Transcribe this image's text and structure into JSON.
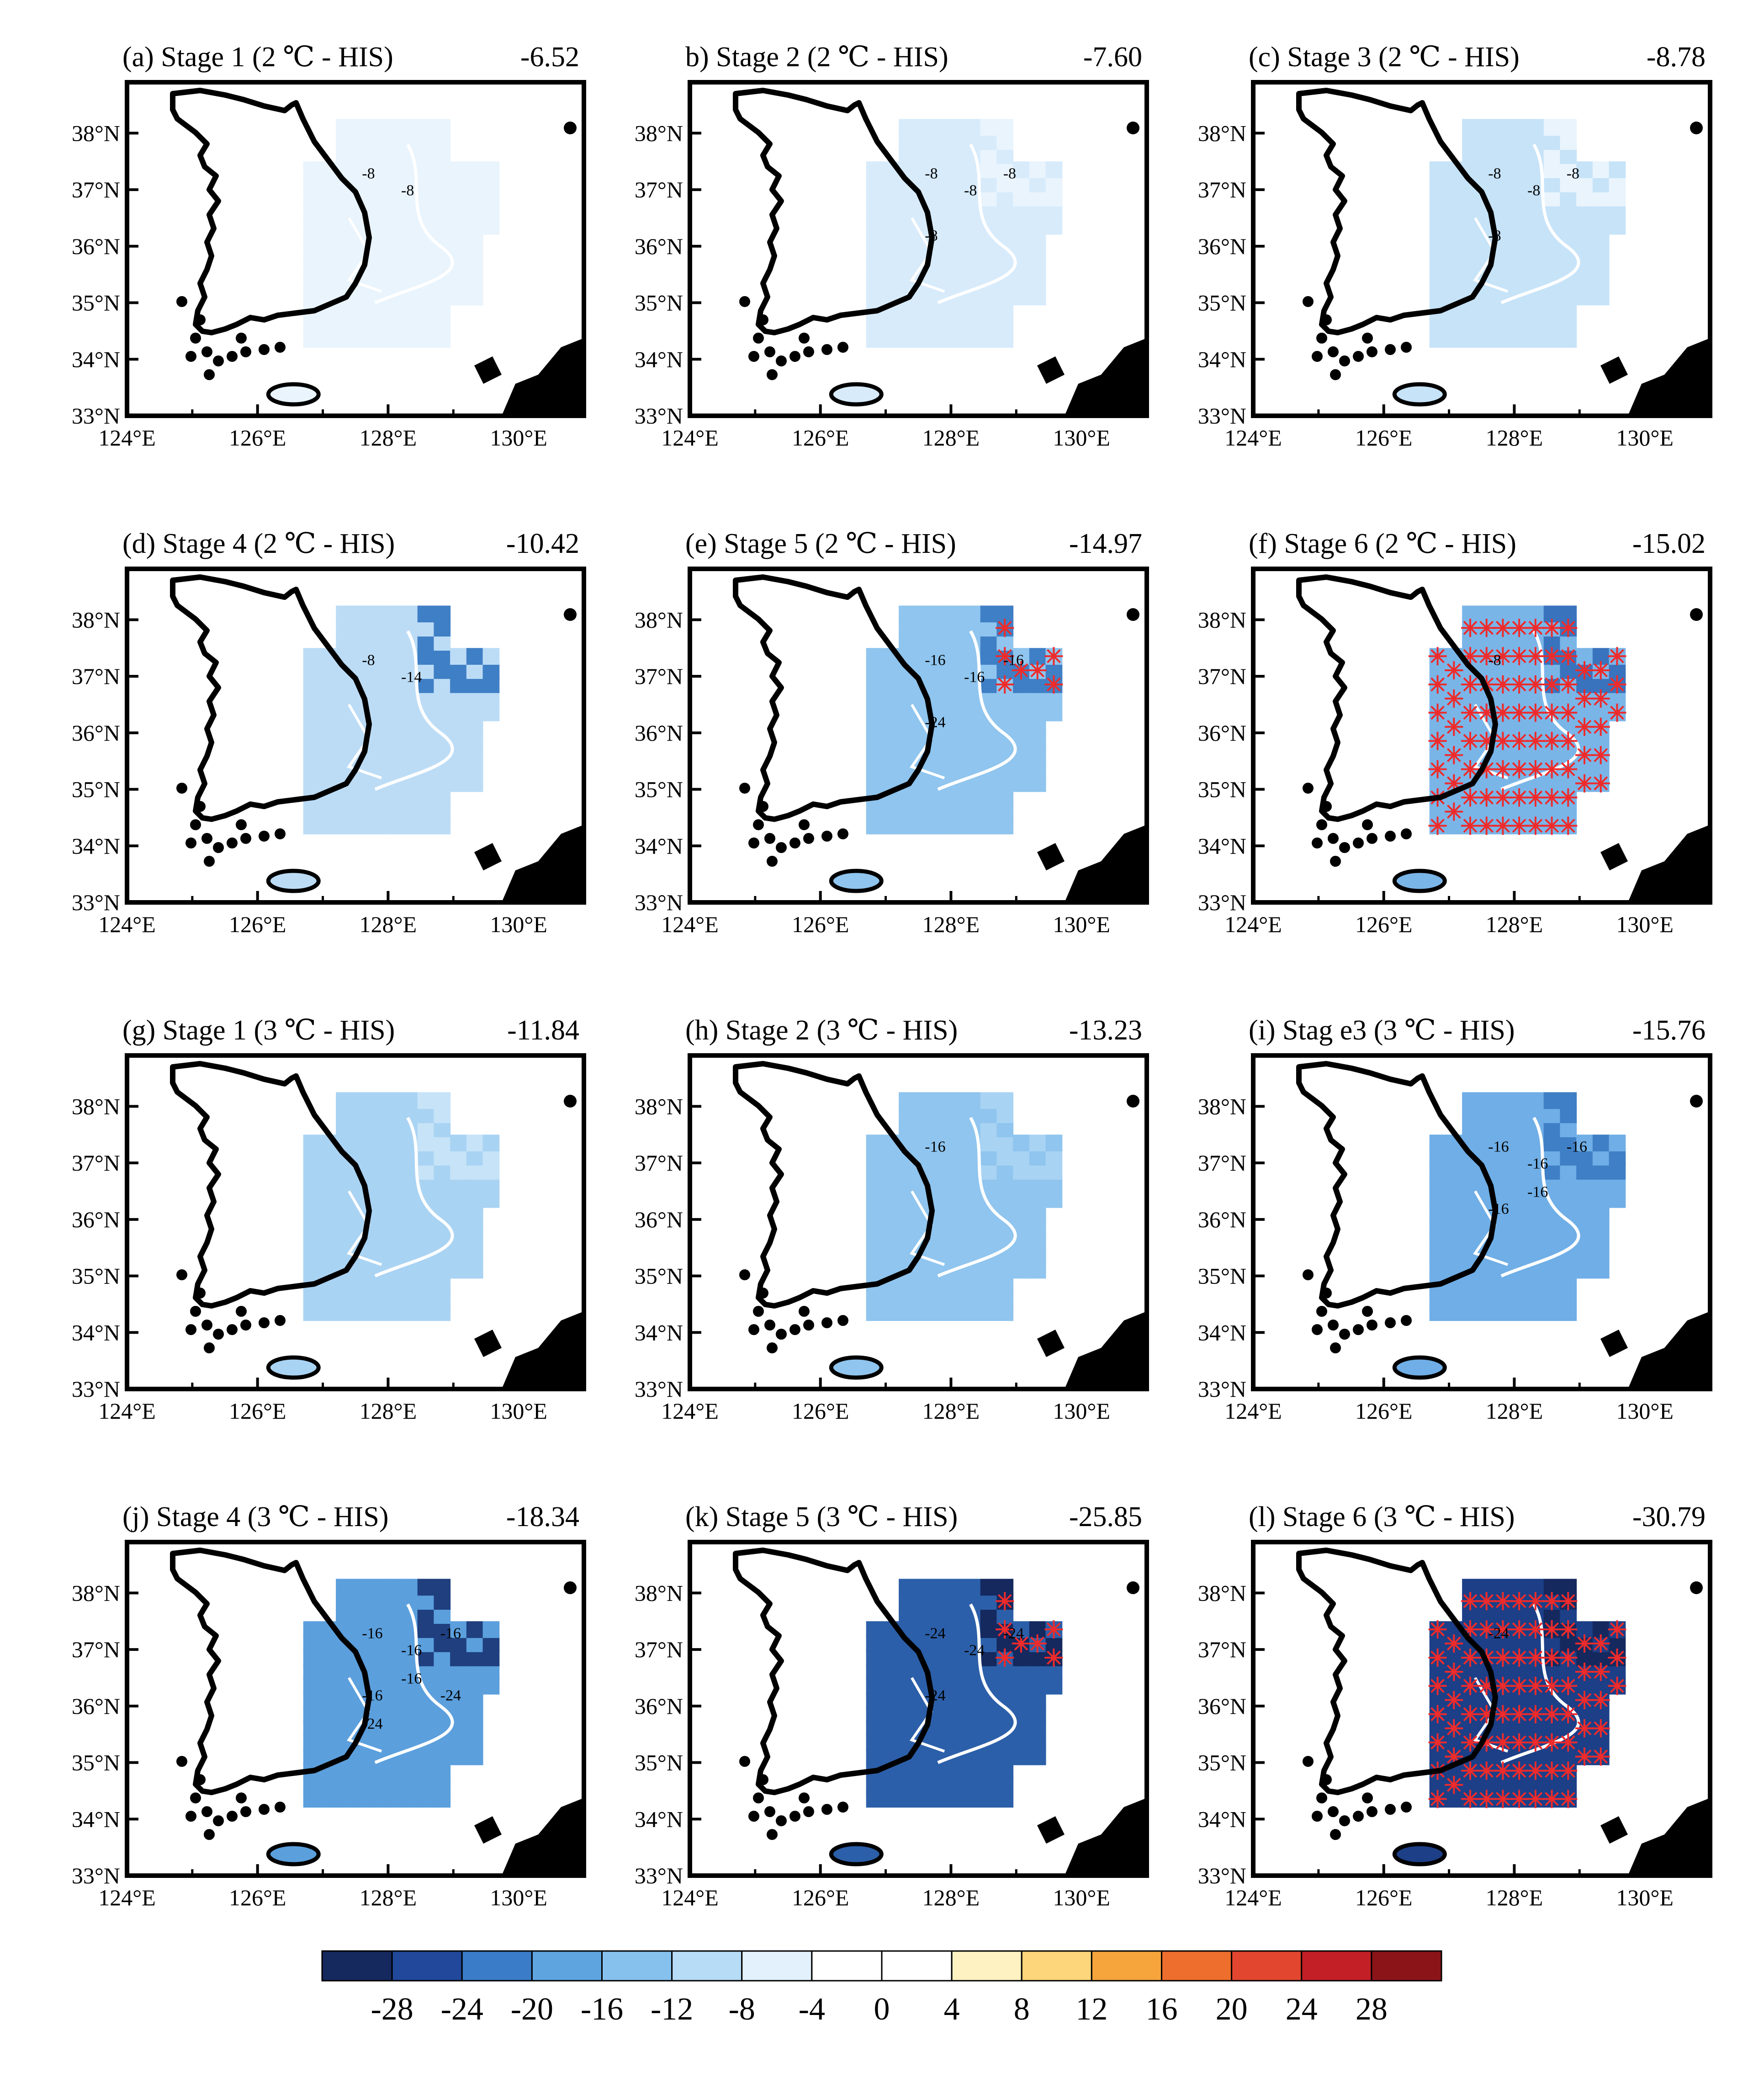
{
  "figure": {
    "lon_ticks": [
      "124°E",
      "126°E",
      "128°E",
      "130°E"
    ],
    "lat_ticks": [
      "33°N",
      "34°N",
      "35°N",
      "36°N",
      "37°N",
      "38°N"
    ],
    "lon_range": [
      124,
      131
    ],
    "lat_range": [
      33,
      38.9
    ],
    "panels": [
      {
        "title": "(a) Stage 1 (2 ℃ - HIS)",
        "value": "-6.52",
        "fill": "#e9f4fd",
        "peak": "#e9f4fd",
        "labels": [
          "-8",
          "-8"
        ]
      },
      {
        "title": "b) Stage 2 (2 ℃ - HIS)",
        "value": "-7.60",
        "fill": "#d7ebfb",
        "peak": "#e9f4fd",
        "labels": [
          "-8",
          "-8",
          "-8",
          "-8"
        ]
      },
      {
        "title": "(c) Stage 3 (2 ℃ - HIS)",
        "value": "-8.78",
        "fill": "#c6e3f8",
        "peak": "#e9f4fd",
        "labels": [
          "-8",
          "-8",
          "-8",
          "-8"
        ]
      },
      {
        "title": "(d) Stage 4 (2 ℃ - HIS)",
        "value": "-10.42",
        "fill": "#bcdcf6",
        "peak": "#3f7fc5",
        "labels": [
          "-8",
          "-14"
        ]
      },
      {
        "title": "(e) Stage 5 (2 ℃ - HIS)",
        "value": "-14.97",
        "fill": "#8fc5ee",
        "peak": "#3f7fc5",
        "labels": [
          "-16",
          "-16",
          "-16",
          "-24"
        ],
        "stars": true
      },
      {
        "title": "(f) Stage 6 (2 ℃ - HIS)",
        "value": "-15.02",
        "fill": "#7ab5e8",
        "peak": "#3a73bd",
        "labels": [
          "-8"
        ],
        "stars": true,
        "heavy_stars": true
      },
      {
        "title": "(g) Stage 1 (3 ℃ - HIS)",
        "value": "-11.84",
        "fill": "#a9d3f3",
        "peak": "#c6e3f8",
        "labels": []
      },
      {
        "title": "(h) Stage 2 (3 ℃ - HIS)",
        "value": "-13.23",
        "fill": "#8fc5ee",
        "peak": "#a9d3f3",
        "labels": [
          "-16"
        ]
      },
      {
        "title": "(i) Stag e3 (3 ℃ - HIS)",
        "value": "-15.76",
        "fill": "#6faee6",
        "peak": "#3f7fc5",
        "labels": [
          "-16",
          "-16",
          "-16",
          "-16",
          "-16"
        ]
      },
      {
        "title": "(j) Stage 4 (3 ℃ - HIS)",
        "value": "-18.34",
        "fill": "#5b9fdd",
        "peak": "#1f3f7f",
        "labels": [
          "-16",
          "-16",
          "-16",
          "-16",
          "-16",
          "-24",
          "-24"
        ]
      },
      {
        "title": "(k) Stage 5 (3 ℃ - HIS)",
        "value": "-25.85",
        "fill": "#2c5fa9",
        "peak": "#15295f",
        "labels": [
          "-24",
          "-24",
          "-24",
          "-24"
        ],
        "stars": true
      },
      {
        "title": "(l) Stage 6 (3 ℃ - HIS)",
        "value": "-30.79",
        "fill": "#1c3f87",
        "peak": "#15295f",
        "labels": [
          "-24"
        ],
        "stars": true,
        "heavy_stars": true
      }
    ],
    "colorbar": {
      "tick_labels": [
        "-28",
        "-24",
        "-20",
        "-16",
        "-12",
        "-8",
        "-4",
        "0",
        "4",
        "8",
        "12",
        "16",
        "20",
        "24",
        "28"
      ],
      "colors": [
        "#15295f",
        "#21489a",
        "#3a7cc8",
        "#5ea4df",
        "#86c1ee",
        "#b6dcf6",
        "#e2f1fc",
        "#ffffff",
        "#ffffff",
        "#fff2c2",
        "#fdd57a",
        "#f6a53c",
        "#ee6e2d",
        "#e2462f",
        "#c22026",
        "#8b1419"
      ]
    },
    "marker_color": "#ee2b2b",
    "coast_color": "#000000"
  }
}
